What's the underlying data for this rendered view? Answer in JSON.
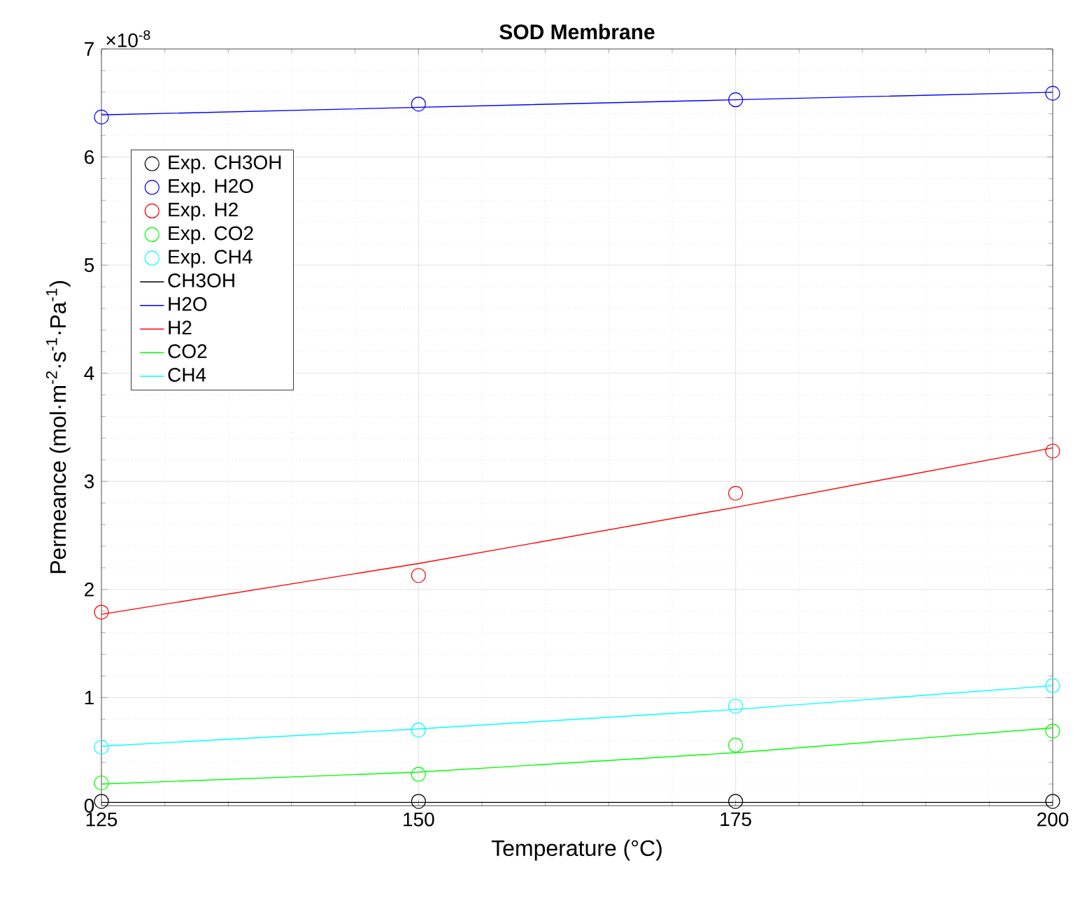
{
  "chart_data": {
    "type": "line",
    "title": "SOD Membrane",
    "xlabel": "Temperature (°C)",
    "ylabel": "Permeance (mol·m$^{-2}$·s$^{-1}$·Pa$^{-1}$)",
    "annotations": [
      "×10$^{-8}$"
    ],
    "x": [
      125,
      150,
      175,
      200
    ],
    "xlim": [
      125,
      200
    ],
    "xticks": [
      125,
      150,
      175,
      200
    ],
    "ylim": [
      0,
      7
    ],
    "yticks": [
      0,
      1,
      2,
      3,
      4,
      5,
      6,
      7
    ],
    "grid": true,
    "legend": "top left",
    "line_style": "solid",
    "series": [
      {
        "name": "Exp. CH3OH",
        "type": "scatter",
        "marker": "circle",
        "color": "#000000",
        "values": [
          0.04,
          0.04,
          0.04,
          0.04
        ]
      },
      {
        "name": "Exp. H2O",
        "type": "scatter",
        "marker": "circle",
        "color": "#0000ff",
        "values": [
          6.37,
          6.49,
          6.53,
          6.59
        ]
      },
      {
        "name": "Exp. H2",
        "type": "scatter",
        "marker": "circle",
        "color": "#ff0000",
        "values": [
          1.79,
          2.13,
          2.89,
          3.28
        ]
      },
      {
        "name": "Exp. CO2",
        "type": "scatter",
        "marker": "circle",
        "color": "#00ff00",
        "values": [
          0.21,
          0.29,
          0.56,
          0.69
        ]
      },
      {
        "name": "Exp. CH4",
        "type": "scatter",
        "marker": "circle",
        "color": "#00ffff",
        "values": [
          0.54,
          0.7,
          0.92,
          1.11
        ]
      },
      {
        "name": "CH3OH",
        "color": "#000000",
        "values": [
          0.03,
          0.03,
          0.03,
          0.03
        ]
      },
      {
        "name": "H2O",
        "color": "#0000ff",
        "values": [
          6.39,
          6.46,
          6.53,
          6.6
        ]
      },
      {
        "name": "H2",
        "color": "#ff0000",
        "values": [
          1.77,
          2.24,
          2.76,
          3.31
        ]
      },
      {
        "name": "CO2",
        "color": "#00ff00",
        "values": [
          0.2,
          0.31,
          0.49,
          0.72
        ]
      },
      {
        "name": "CH4",
        "color": "#00ffff",
        "values": [
          0.55,
          0.71,
          0.89,
          1.11
        ]
      }
    ]
  }
}
